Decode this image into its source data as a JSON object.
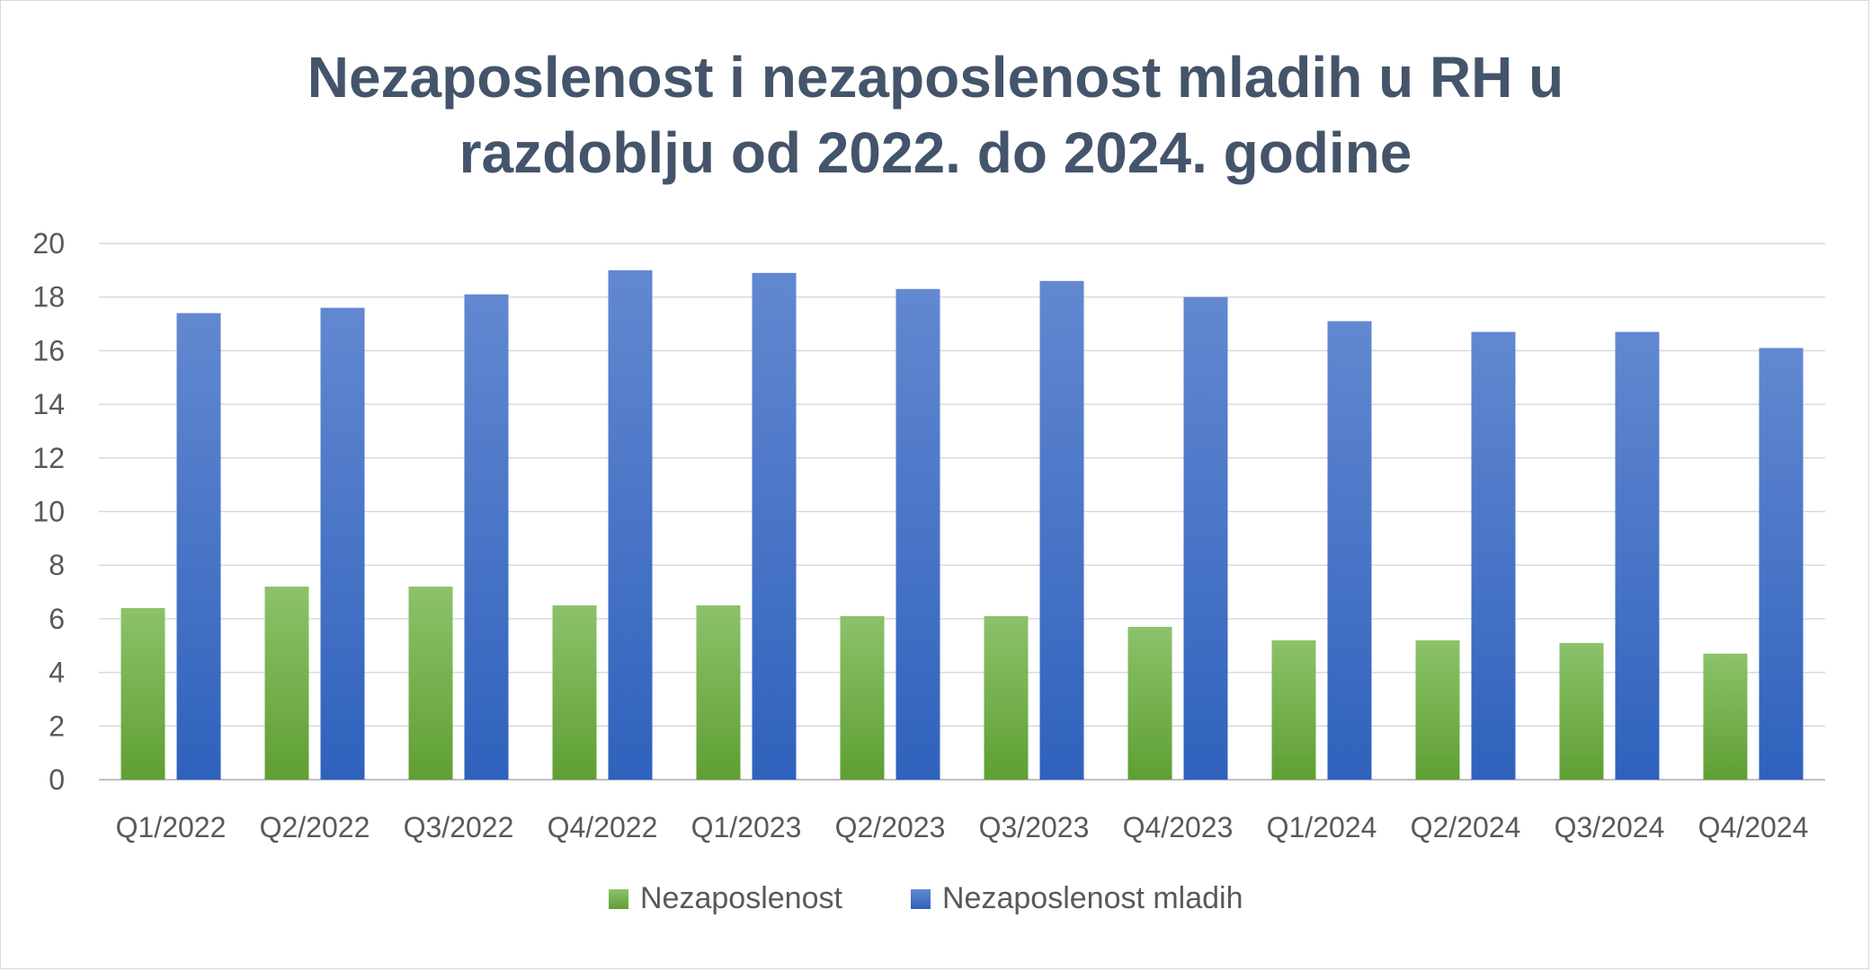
{
  "chart_data": {
    "type": "bar",
    "title": "Nezaposlenost i nezaposlenost mladih u RH u razdoblju od 2022. do 2024. godine",
    "title_lines": [
      "Nezaposlenost i nezaposlenost mladih u RH u",
      "razdoblju od 2022. do 2024. godine"
    ],
    "categories": [
      "Q1/2022",
      "Q2/2022",
      "Q3/2022",
      "Q4/2022",
      "Q1/2023",
      "Q2/2023",
      "Q3/2023",
      "Q4/2023",
      "Q1/2024",
      "Q2/2024",
      "Q3/2024",
      "Q4/2024"
    ],
    "series": [
      {
        "name": "Nezaposlenost",
        "color": "#70ad47",
        "values": [
          6.4,
          7.2,
          7.2,
          6.5,
          6.5,
          6.1,
          6.1,
          5.7,
          5.2,
          5.2,
          5.1,
          4.7
        ]
      },
      {
        "name": "Nezaposlenost mladih",
        "color": "#4472c4",
        "values": [
          17.4,
          17.6,
          18.1,
          19.0,
          18.9,
          18.3,
          18.6,
          18.0,
          17.1,
          16.7,
          16.7,
          16.1
        ]
      }
    ],
    "ylim": [
      0,
      20
    ],
    "yticks": [
      0,
      2,
      4,
      6,
      8,
      10,
      12,
      14,
      16,
      18,
      20
    ],
    "xlabel": "",
    "ylabel": "",
    "grid": true,
    "legend": "bottom"
  }
}
